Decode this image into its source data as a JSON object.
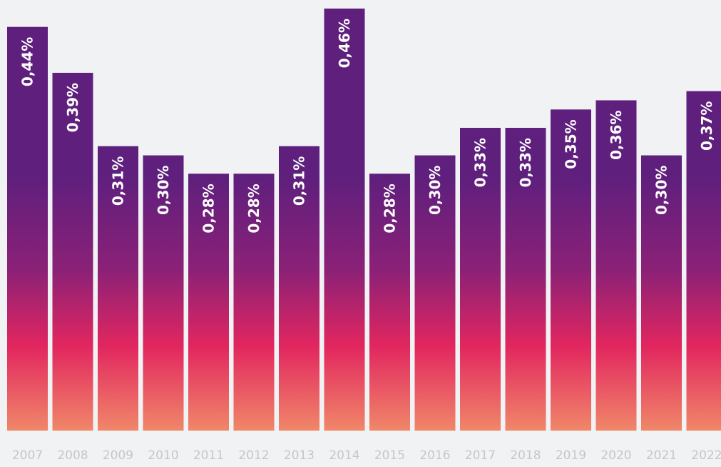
{
  "chart_data": {
    "type": "bar",
    "categories": [
      "2007",
      "2008",
      "2009",
      "2010",
      "2011",
      "2012",
      "2013",
      "2014",
      "2015",
      "2016",
      "2017",
      "2018",
      "2019",
      "2020",
      "2021",
      "2022"
    ],
    "values": [
      0.44,
      0.39,
      0.31,
      0.3,
      0.28,
      0.28,
      0.31,
      0.46,
      0.28,
      0.3,
      0.33,
      0.33,
      0.35,
      0.36,
      0.3,
      0.37
    ],
    "value_labels": [
      "0,44%",
      "0,39%",
      "0,31%",
      "0,30%",
      "0,28%",
      "0,28%",
      "0,31%",
      "0,46%",
      "0,28%",
      "0,30%",
      "0,33%",
      "0,33%",
      "0,35%",
      "0,36%",
      "0,30%",
      "0,37%"
    ],
    "title": "",
    "xlabel": "",
    "ylabel": "",
    "ylim": [
      0,
      0.46
    ],
    "grid": false,
    "legend": "none",
    "colors": {
      "background": "#f1f2f4",
      "gradient_top": "#5f1f7d",
      "gradient_mid": "#8b2177",
      "gradient_pink": "#e2265f",
      "gradient_bottom": "#f08769",
      "value_text": "#ffffff",
      "tick_text": "#c4c6cc"
    }
  }
}
